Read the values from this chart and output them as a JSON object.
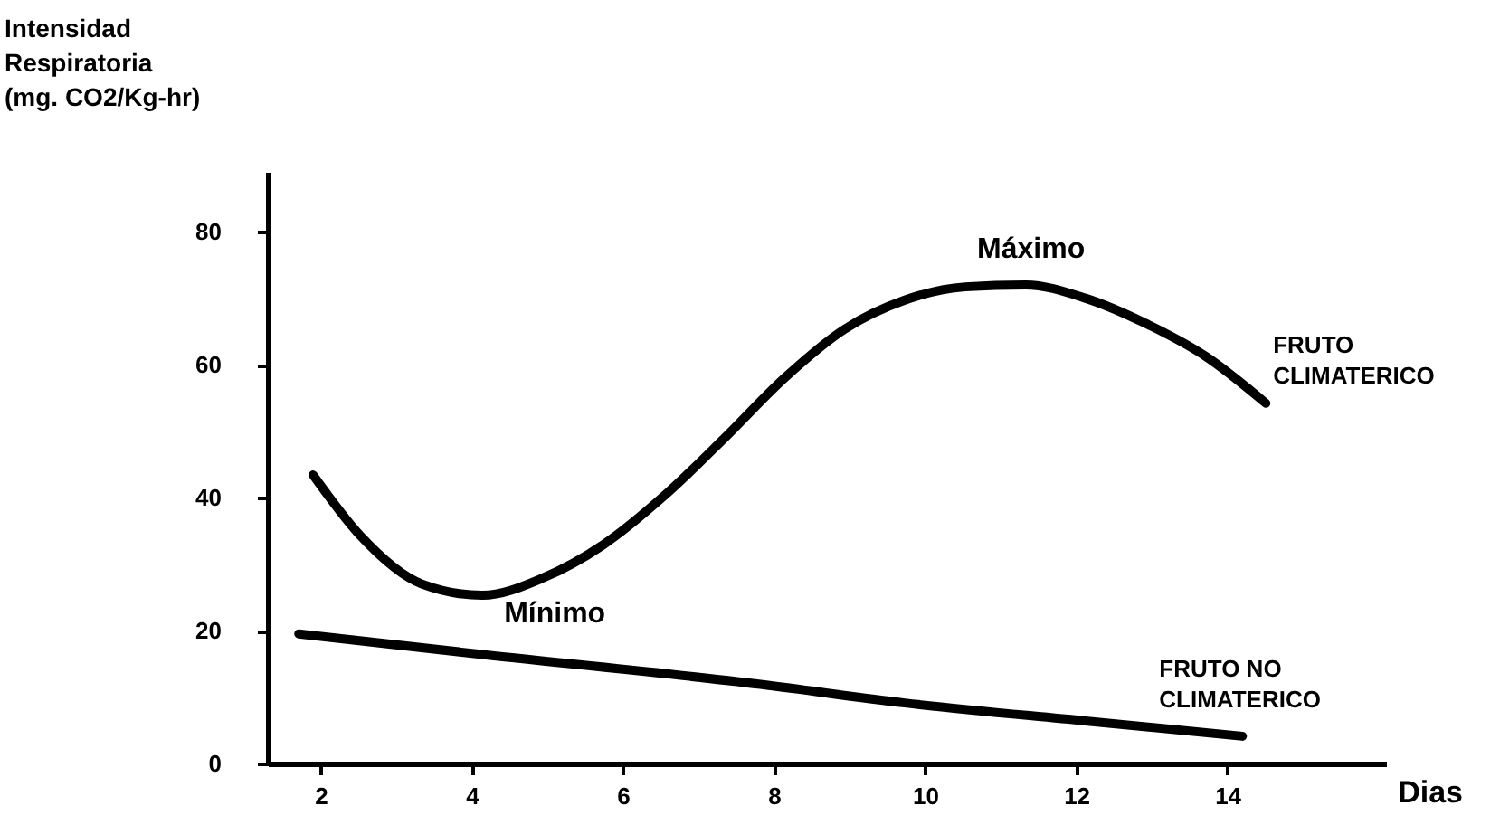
{
  "chart_data": {
    "type": "line",
    "xlabel": "Dias",
    "ylabel": "Intensidad Respiratoria (mg. CO2/Kg-hr)",
    "xlim": [
      1.3,
      16.1
    ],
    "ylim": [
      0,
      89
    ],
    "xticks": [
      2,
      4,
      6,
      8,
      10,
      12,
      14
    ],
    "yticks": [
      0,
      20,
      40,
      60,
      80
    ],
    "line_style": "solid",
    "series": [
      {
        "name": "FRUTO CLIMATERICO",
        "color": "#000000",
        "x": [
          1.9,
          2.53,
          3.34,
          4.14,
          4.94,
          5.74,
          6.54,
          7.34,
          8.14,
          8.93,
          9.73,
          10.53,
          11.33,
          12.12,
          12.92,
          13.72,
          14.51
        ],
        "values": [
          43.4,
          34.2,
          27,
          25.3,
          27.9,
          32.9,
          40.2,
          48.9,
          58,
          65.3,
          69.7,
          71.7,
          72,
          70,
          66.2,
          61.2,
          54.2
        ]
      },
      {
        "name": "FRUTO NO CLIMATERICO",
        "color": "#000000",
        "x": [
          1.71,
          4.14,
          7.82,
          9.73,
          12.12,
          14.2
        ],
        "values": [
          19.5,
          16.4,
          11.9,
          9.1,
          6.4,
          4.1
        ]
      }
    ],
    "annotations": [
      {
        "text": "Mínimo",
        "x": 4.14,
        "y": 25.3
      },
      {
        "text": "Máximo",
        "x": 11.33,
        "y": 72
      }
    ]
  }
}
